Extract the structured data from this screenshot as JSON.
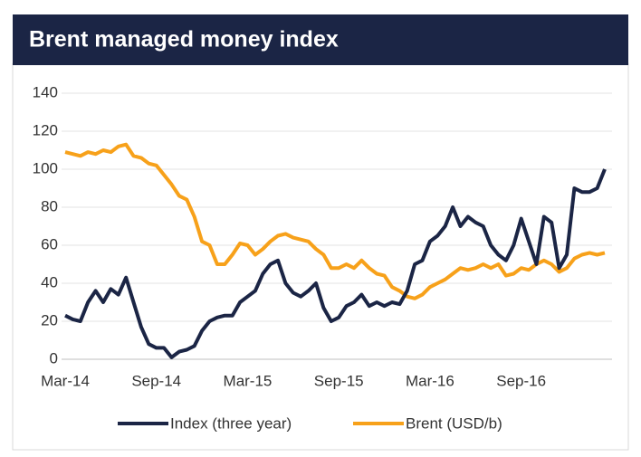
{
  "chart_data": {
    "type": "line",
    "title": "Brent managed money index",
    "categories": [
      "Mar-14",
      null,
      null,
      null,
      null,
      null,
      null,
      null,
      null,
      null,
      null,
      null,
      "Sep-14",
      null,
      null,
      null,
      null,
      null,
      null,
      null,
      null,
      null,
      null,
      null,
      "Mar-15",
      null,
      null,
      null,
      null,
      null,
      null,
      null,
      null,
      null,
      null,
      null,
      "Sep-15",
      null,
      null,
      null,
      null,
      null,
      null,
      null,
      null,
      null,
      null,
      null,
      "Mar-16",
      null,
      null,
      null,
      null,
      null,
      null,
      null,
      null,
      null,
      null,
      null,
      "Sep-16",
      null,
      null,
      null,
      null,
      null,
      null,
      null,
      null,
      null,
      null,
      null
    ],
    "series": [
      {
        "name": "Index (three year)",
        "color": "#1b2545",
        "values": [
          23,
          21,
          20,
          30,
          36,
          30,
          37,
          34,
          43,
          30,
          17,
          8,
          6,
          6,
          1,
          4,
          5,
          7,
          15,
          20,
          22,
          23,
          23,
          30,
          33,
          36,
          45,
          50,
          52,
          40,
          35,
          33,
          36,
          40,
          27,
          20,
          22,
          28,
          30,
          34,
          28,
          30,
          28,
          30,
          29,
          36,
          50,
          52,
          62,
          65,
          70,
          80,
          70,
          75,
          72,
          70,
          60,
          55,
          52,
          60,
          74,
          62,
          50,
          75,
          72,
          48,
          55,
          90,
          88,
          88,
          90,
          100
        ]
      },
      {
        "name": "Brent (USD/b)",
        "color": "#f7a11a",
        "values": [
          109,
          108,
          107,
          109,
          108,
          110,
          109,
          112,
          113,
          107,
          106,
          103,
          102,
          97,
          92,
          86,
          84,
          75,
          62,
          60,
          50,
          50,
          55,
          61,
          60,
          55,
          58,
          62,
          65,
          66,
          64,
          63,
          62,
          58,
          55,
          48,
          48,
          50,
          48,
          52,
          48,
          45,
          44,
          38,
          36,
          33,
          32,
          34,
          38,
          40,
          42,
          45,
          48,
          47,
          48,
          50,
          48,
          50,
          44,
          45,
          48,
          47,
          50,
          52,
          50,
          46,
          48,
          53,
          55,
          56,
          55,
          56
        ]
      }
    ],
    "ylim": [
      0,
      140
    ],
    "yticks": [
      0,
      20,
      40,
      60,
      80,
      100,
      120,
      140
    ],
    "grid": true,
    "legend": "bottom"
  }
}
